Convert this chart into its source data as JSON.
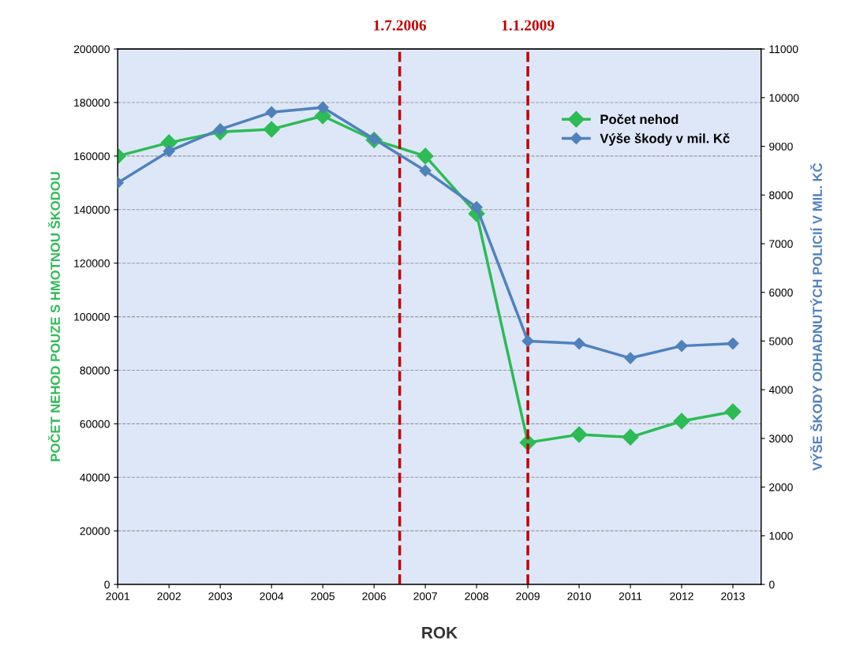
{
  "chart_data": {
    "type": "line",
    "xlabel": "ROK",
    "ylabel": "POČET NEHOD POUZE S HMOTNOU ŠKODOU",
    "y2label": "VÝŠE ŠKODY ODHADNUTÝCH POLICIÍ V MIL. KČ",
    "x": [
      2001,
      2002,
      2003,
      2004,
      2005,
      2006,
      2007,
      2008,
      2009,
      2010,
      2011,
      2012,
      2013
    ],
    "series": [
      {
        "name": "Počet nehod",
        "color": "#2dbb55",
        "values": [
          160000,
          165000,
          169000,
          170000,
          175000,
          166000,
          160000,
          138500,
          53000,
          56000,
          55000,
          61000,
          64500
        ]
      },
      {
        "name": "Výše škody v mil. Kč",
        "color": "#4f81bd",
        "axis": "y2",
        "values": [
          8250,
          8900,
          9350,
          9700,
          9800,
          9150,
          8500,
          7750,
          5000,
          4950,
          4650,
          4900,
          4950
        ]
      }
    ],
    "xlim": [
      2001,
      2013.55
    ],
    "xticks": [
      2001,
      2002,
      2003,
      2004,
      2005,
      2006,
      2007,
      2008,
      2009,
      2010,
      2011,
      2012,
      2013
    ],
    "ylim": [
      0,
      200000
    ],
    "yticks": [
      0,
      20000,
      40000,
      60000,
      80000,
      100000,
      120000,
      140000,
      160000,
      180000,
      200000
    ],
    "y2lim": [
      0,
      11000
    ],
    "y2ticks": [
      0,
      1000,
      2000,
      3000,
      4000,
      5000,
      6000,
      7000,
      8000,
      9000,
      10000,
      11000
    ],
    "ref_lines": [
      {
        "axis": "x",
        "value": 2006.5,
        "label": "1.7.2006",
        "color": "#c00000",
        "line_style": "dashed"
      },
      {
        "axis": "x",
        "value": 2009,
        "label": "1.1.2009",
        "color": "#c00000",
        "line_style": "dashed"
      }
    ],
    "grid": "y",
    "legend": "top right",
    "marker": "diamond",
    "line_style": "solid"
  }
}
